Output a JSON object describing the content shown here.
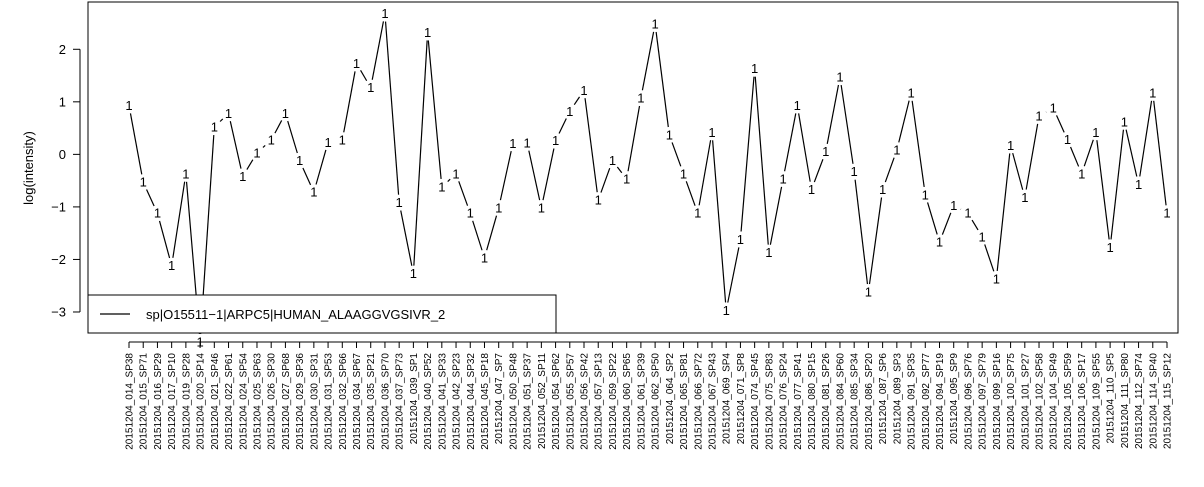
{
  "chart_data": {
    "type": "line",
    "title": "",
    "xlabel": "",
    "ylabel": "log(intensity)",
    "ylim": [
      -3.4,
      2.9
    ],
    "y_ticks": [
      -3,
      -2,
      -1,
      0,
      1,
      2
    ],
    "y_tick_labels": [
      "−3",
      "−2",
      "−1",
      "0",
      "1",
      "2"
    ],
    "point_symbol": "1",
    "legend_position": "bottom-left",
    "categories": [
      "20151204_014_SP38",
      "20151204_015_SP71",
      "20151204_016_SP29",
      "20151204_017_SP10",
      "20151204_019_SP28",
      "20151204_020_SP14",
      "20151204_021_SP46",
      "20151204_022_SP61",
      "20151204_024_SP54",
      "20151204_025_SP63",
      "20151204_026_SP30",
      "20151204_027_SP68",
      "20151204_029_SP36",
      "20151204_030_SP31",
      "20151204_031_SP53",
      "20151204_032_SP66",
      "20151204_034_SP67",
      "20151204_035_SP21",
      "20151204_036_SP70",
      "20151204_037_SP73",
      "20151204_039_SP1",
      "20151204_040_SP52",
      "20151204_041_SP33",
      "20151204_042_SP23",
      "20151204_044_SP32",
      "20151204_045_SP18",
      "20151204_047_SP7",
      "20151204_050_SP48",
      "20151204_051_SP37",
      "20151204_052_SP11",
      "20151204_054_SP62",
      "20151204_055_SP57",
      "20151204_056_SP42",
      "20151204_057_SP13",
      "20151204_059_SP22",
      "20151204_060_SP65",
      "20151204_061_SP39",
      "20151204_062_SP50",
      "20151204_064_SP2",
      "20151204_065_SP81",
      "20151204_066_SP72",
      "20151204_067_SP43",
      "20151204_069_SP4",
      "20151204_071_SP8",
      "20151204_074_SP45",
      "20151204_075_SP83",
      "20151204_076_SP24",
      "20151204_077_SP41",
      "20151204_080_SP15",
      "20151204_081_SP26",
      "20151204_084_SP60",
      "20151204_085_SP34",
      "20151204_086_SP20",
      "20151204_087_SP6",
      "20151204_089_SP3",
      "20151204_091_SP35",
      "20151204_092_SP77",
      "20151204_094_SP19",
      "20151204_095_SP9",
      "20151204_096_SP76",
      "20151204_097_SP79",
      "20151204_099_SP16",
      "20151204_100_SP75",
      "20151204_101_SP27",
      "20151204_102_SP58",
      "20151204_104_SP49",
      "20151204_105_SP59",
      "20151204_106_SP17",
      "20151204_109_SP55",
      "20151204_110_SP5",
      "20151204_111_SP80",
      "20151204_112_SP74",
      "20151204_114_SP40",
      "20151204_115_SP12"
    ],
    "series": [
      {
        "name": "sp|O15511−1|ARPC5|HUMAN_ALAAGGVGSIVR_2",
        "color": "#000000",
        "values": [
          0.93,
          -0.53,
          -1.12,
          -2.12,
          -0.37,
          -3.57,
          0.52,
          0.78,
          -0.42,
          0.03,
          0.27,
          0.78,
          -0.12,
          -0.72,
          0.23,
          0.27,
          1.73,
          1.27,
          2.68,
          -0.92,
          -2.27,
          2.32,
          -0.62,
          -0.37,
          -1.12,
          -1.97,
          -1.02,
          0.21,
          0.22,
          -1.02,
          0.26,
          0.82,
          1.22,
          -0.87,
          -0.12,
          -0.47,
          1.07,
          2.48,
          0.37,
          -0.37,
          -1.12,
          0.42,
          -2.97,
          -1.62,
          1.63,
          -1.87,
          -0.47,
          0.93,
          -0.67,
          0.05,
          1.47,
          -0.33,
          -2.62,
          -0.67,
          0.08,
          1.17,
          -0.77,
          -1.67,
          -0.97,
          -1.12,
          -1.57,
          -2.37,
          0.17,
          -0.82,
          0.73,
          0.88,
          0.28,
          -0.37,
          0.42,
          -1.77,
          0.62,
          -0.57,
          1.17,
          -1.12
        ]
      }
    ]
  }
}
